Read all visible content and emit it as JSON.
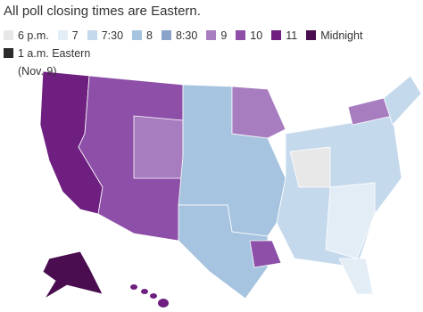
{
  "title": "All poll closing times are Eastern.",
  "legend": {
    "items": [
      {
        "label": "6 p.m.",
        "color": "#e8e8e8"
      },
      {
        "label": "7",
        "color": "#e3edf6"
      },
      {
        "label": "7:30",
        "color": "#c5d9ec"
      },
      {
        "label": "8",
        "color": "#a6c4df"
      },
      {
        "label": "8:30",
        "color": "#8aa3c8"
      },
      {
        "label": "9",
        "color": "#a77dc0"
      },
      {
        "label": "10",
        "color": "#8d4fa8"
      },
      {
        "label": "11",
        "color": "#6e1f80"
      },
      {
        "label": "Midnight",
        "color": "#4a0d4f"
      },
      {
        "label": "1 a.m. Eastern (Nov. 9)",
        "color": "#2b2b2b"
      }
    ]
  }
}
